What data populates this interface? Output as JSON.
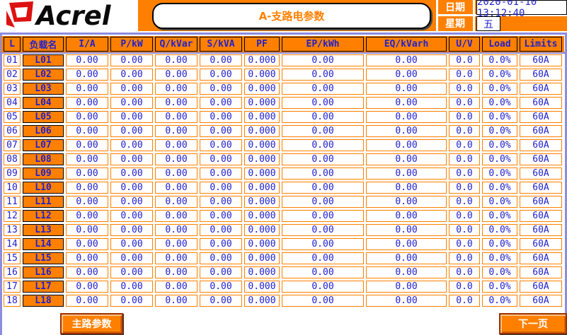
{
  "colors": {
    "accent_orange": "#FF8000",
    "text_blue": "#2121CC",
    "frame_periwinkle": "#8C8CE0",
    "logo_red": "#DD1111",
    "button_border": "#9C3000"
  },
  "logo": {
    "text": "Acrel"
  },
  "header": {
    "title": "A-支路电参数",
    "date_label": "日期",
    "date_value": "2020-01-10 13:12:40",
    "week_label": "星期",
    "week_value": "五"
  },
  "table": {
    "columns": [
      "L",
      "负载名",
      "I/A",
      "P/kW",
      "Q/kVar",
      "S/kVA",
      "PF",
      "EP/kWh",
      "EQ/kVarh",
      "U/V",
      "Load",
      "Limits"
    ],
    "rows": [
      {
        "no": "01",
        "name": "L01",
        "values": [
          "0.00",
          "0.00",
          "0.00",
          "0.00",
          "0.000",
          "0.00",
          "0.00",
          "0.0",
          "0.0%",
          "60A"
        ]
      },
      {
        "no": "02",
        "name": "L02",
        "values": [
          "0.00",
          "0.00",
          "0.00",
          "0.00",
          "0.000",
          "0.00",
          "0.00",
          "0.0",
          "0.0%",
          "60A"
        ]
      },
      {
        "no": "03",
        "name": "L03",
        "values": [
          "0.00",
          "0.00",
          "0.00",
          "0.00",
          "0.000",
          "0.00",
          "0.00",
          "0.0",
          "0.0%",
          "60A"
        ]
      },
      {
        "no": "04",
        "name": "L04",
        "values": [
          "0.00",
          "0.00",
          "0.00",
          "0.00",
          "0.000",
          "0.00",
          "0.00",
          "0.0",
          "0.0%",
          "60A"
        ]
      },
      {
        "no": "05",
        "name": "L05",
        "values": [
          "0.00",
          "0.00",
          "0.00",
          "0.00",
          "0.000",
          "0.00",
          "0.00",
          "0.0",
          "0.0%",
          "60A"
        ]
      },
      {
        "no": "06",
        "name": "L06",
        "values": [
          "0.00",
          "0.00",
          "0.00",
          "0.00",
          "0.000",
          "0.00",
          "0.00",
          "0.0",
          "0.0%",
          "60A"
        ]
      },
      {
        "no": "07",
        "name": "L07",
        "values": [
          "0.00",
          "0.00",
          "0.00",
          "0.00",
          "0.000",
          "0.00",
          "0.00",
          "0.0",
          "0.0%",
          "60A"
        ]
      },
      {
        "no": "08",
        "name": "L08",
        "values": [
          "0.00",
          "0.00",
          "0.00",
          "0.00",
          "0.000",
          "0.00",
          "0.00",
          "0.0",
          "0.0%",
          "60A"
        ]
      },
      {
        "no": "09",
        "name": "L09",
        "values": [
          "0.00",
          "0.00",
          "0.00",
          "0.00",
          "0.000",
          "0.00",
          "0.00",
          "0.0",
          "0.0%",
          "60A"
        ]
      },
      {
        "no": "10",
        "name": "L10",
        "values": [
          "0.00",
          "0.00",
          "0.00",
          "0.00",
          "0.000",
          "0.00",
          "0.00",
          "0.0",
          "0.0%",
          "60A"
        ]
      },
      {
        "no": "11",
        "name": "L11",
        "values": [
          "0.00",
          "0.00",
          "0.00",
          "0.00",
          "0.000",
          "0.00",
          "0.00",
          "0.0",
          "0.0%",
          "60A"
        ]
      },
      {
        "no": "12",
        "name": "L12",
        "values": [
          "0.00",
          "0.00",
          "0.00",
          "0.00",
          "0.000",
          "0.00",
          "0.00",
          "0.0",
          "0.0%",
          "60A"
        ]
      },
      {
        "no": "13",
        "name": "L13",
        "values": [
          "0.00",
          "0.00",
          "0.00",
          "0.00",
          "0.000",
          "0.00",
          "0.00",
          "0.0",
          "0.0%",
          "60A"
        ]
      },
      {
        "no": "14",
        "name": "L14",
        "values": [
          "0.00",
          "0.00",
          "0.00",
          "0.00",
          "0.000",
          "0.00",
          "0.00",
          "0.0",
          "0.0%",
          "60A"
        ]
      },
      {
        "no": "15",
        "name": "L15",
        "values": [
          "0.00",
          "0.00",
          "0.00",
          "0.00",
          "0.000",
          "0.00",
          "0.00",
          "0.0",
          "0.0%",
          "60A"
        ]
      },
      {
        "no": "16",
        "name": "L16",
        "values": [
          "0.00",
          "0.00",
          "0.00",
          "0.00",
          "0.000",
          "0.00",
          "0.00",
          "0.0",
          "0.0%",
          "60A"
        ]
      },
      {
        "no": "17",
        "name": "L17",
        "values": [
          "0.00",
          "0.00",
          "0.00",
          "0.00",
          "0.000",
          "0.00",
          "0.00",
          "0.0",
          "0.0%",
          "60A"
        ]
      },
      {
        "no": "18",
        "name": "L18",
        "values": [
          "0.00",
          "0.00",
          "0.00",
          "0.00",
          "0.000",
          "0.00",
          "0.00",
          "0.0",
          "0.0%",
          "60A"
        ]
      }
    ]
  },
  "footer": {
    "main_button": "主路参数",
    "next_button": "下一页"
  }
}
